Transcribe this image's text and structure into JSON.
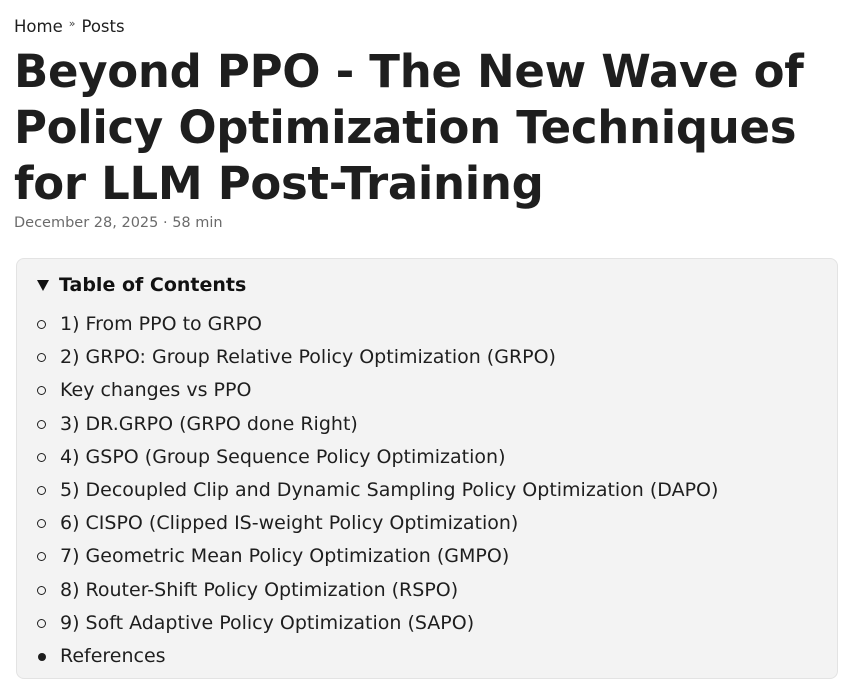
{
  "breadcrumb": {
    "home": "Home",
    "separator": "»",
    "posts": "Posts"
  },
  "post": {
    "title": "Beyond PPO - The New Wave of Policy Optimization Techniques for LLM Post-Training",
    "meta": "December 28, 2025 · 58 min"
  },
  "toc": {
    "title": "Table of Contents",
    "expanded": true,
    "items": [
      {
        "label": "1) From PPO to GRPO",
        "bullet": "circle"
      },
      {
        "label": "2) GRPO: Group Relative Policy Optimization (GRPO)",
        "bullet": "circle"
      },
      {
        "label": "Key changes vs PPO",
        "bullet": "circle"
      },
      {
        "label": "3) DR.GRPO (GRPO done Right)",
        "bullet": "circle"
      },
      {
        "label": "4) GSPO (Group Sequence Policy Optimization)",
        "bullet": "circle"
      },
      {
        "label": "5) Decoupled Clip and Dynamic Sampling Policy Optimization (DAPO)",
        "bullet": "circle"
      },
      {
        "label": "6) CISPO (Clipped IS-weight Policy Optimization)",
        "bullet": "circle"
      },
      {
        "label": "7) Geometric Mean Policy Optimization (GMPO)",
        "bullet": "circle"
      },
      {
        "label": "8) Router-Shift Policy Optimization (RSPO)",
        "bullet": "circle"
      },
      {
        "label": "9) Soft Adaptive Policy Optimization (SAPO)",
        "bullet": "circle"
      },
      {
        "label": "References",
        "bullet": "disc"
      }
    ]
  }
}
